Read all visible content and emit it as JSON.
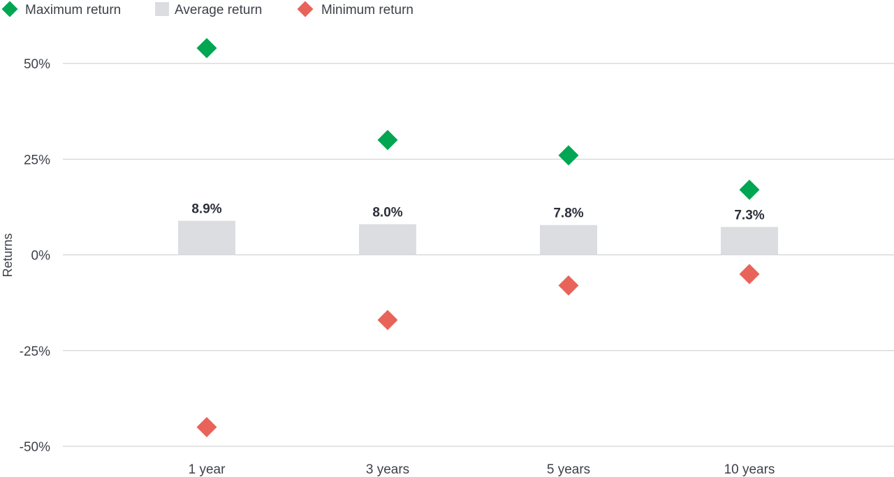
{
  "chart_data": {
    "type": "scatter",
    "ylabel": "Returns",
    "ylim": [
      -50,
      50
    ],
    "yticks": [
      50,
      25,
      0,
      -25,
      -50
    ],
    "ytick_labels": [
      "50%",
      "25%",
      "0%",
      "-25%",
      "-50%"
    ],
    "categories": [
      "1 year",
      "3 years",
      "5 years",
      "10 years"
    ],
    "legend_position": "top-left",
    "grid": true,
    "series": [
      {
        "name": "Maximum return",
        "kind": "diamond",
        "color": "#00a651",
        "values": [
          54,
          30,
          26,
          17
        ]
      },
      {
        "name": "Average return",
        "kind": "bar",
        "color": "#dcdde1",
        "values": [
          8.9,
          8.0,
          7.8,
          7.3
        ],
        "labels": [
          "8.9%",
          "8.0%",
          "7.8%",
          "7.3%"
        ]
      },
      {
        "name": "Minimum return",
        "kind": "diamond",
        "color": "#e8645a",
        "values": [
          -45,
          -17,
          -8,
          -5
        ]
      }
    ]
  }
}
